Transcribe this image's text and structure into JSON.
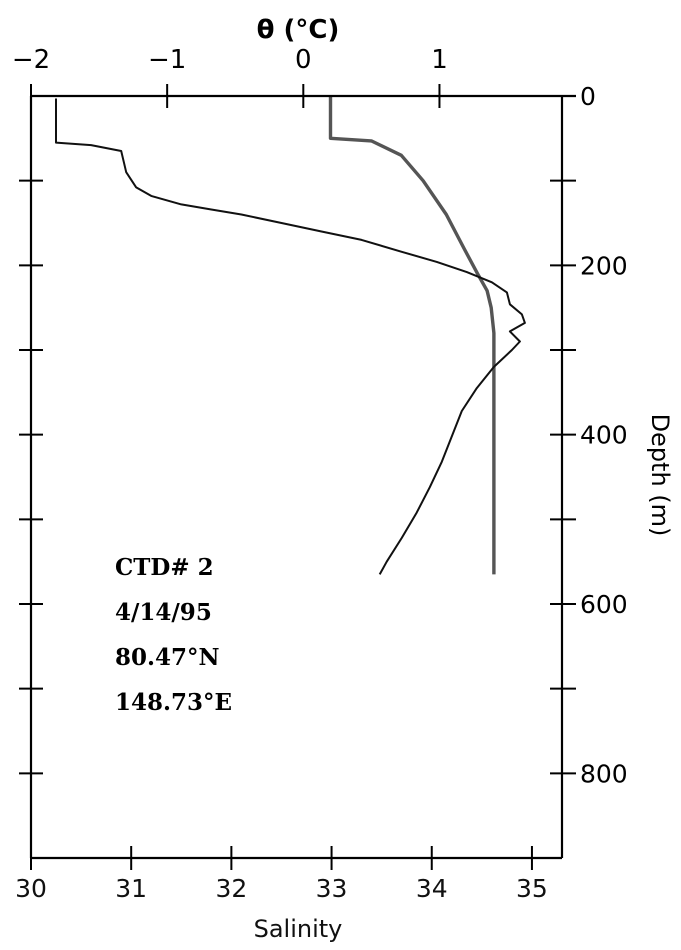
{
  "chart_data": {
    "type": "line",
    "orientation": "vertical-profile",
    "title": "",
    "top_axis": {
      "label": "θ (°C)",
      "range": [
        -2,
        1.9
      ],
      "ticks": [
        "−2",
        "−1",
        "0",
        "1"
      ],
      "tick_values": [
        -2,
        -1,
        0,
        1
      ]
    },
    "bottom_axis": {
      "label": "Salinity",
      "range": [
        30,
        35.3
      ],
      "ticks": [
        "30",
        "31",
        "32",
        "33",
        "34",
        "35"
      ],
      "tick_values": [
        30,
        31,
        32,
        33,
        34,
        35
      ]
    },
    "right_axis": {
      "label": "Depth (m)",
      "range": [
        0,
        900
      ],
      "inverted": true,
      "major_ticks": [
        "0",
        "200",
        "400",
        "600",
        "800"
      ],
      "major_tick_values": [
        0,
        200,
        400,
        600,
        800
      ],
      "minor_tick_values": [
        100,
        300,
        500,
        700
      ]
    },
    "annotations": [
      "CTD# 2",
      "4/14/95",
      "80.47°N",
      "148.73°E"
    ],
    "series": [
      {
        "variable": "theta",
        "color": "#555555",
        "points": [
          [
            0.2,
            0
          ],
          [
            0.2,
            50
          ],
          [
            0.5,
            53
          ],
          [
            0.72,
            70
          ],
          [
            0.88,
            100
          ],
          [
            1.05,
            140
          ],
          [
            1.18,
            180
          ],
          [
            1.28,
            210
          ],
          [
            1.35,
            230
          ],
          [
            1.38,
            250
          ],
          [
            1.4,
            280
          ],
          [
            1.4,
            300
          ],
          [
            1.4,
            400
          ],
          [
            1.4,
            500
          ],
          [
            1.4,
            565
          ]
        ]
      },
      {
        "variable": "salinity",
        "color": "#111111",
        "points": [
          [
            30.25,
            3
          ],
          [
            30.25,
            55
          ],
          [
            30.6,
            58
          ],
          [
            30.9,
            65
          ],
          [
            30.93,
            80
          ],
          [
            30.95,
            90
          ],
          [
            31.05,
            108
          ],
          [
            31.2,
            118
          ],
          [
            31.5,
            128
          ],
          [
            31.8,
            134
          ],
          [
            32.1,
            140
          ],
          [
            32.5,
            150
          ],
          [
            32.9,
            160
          ],
          [
            33.3,
            170
          ],
          [
            33.7,
            184
          ],
          [
            34.05,
            196
          ],
          [
            34.35,
            208
          ],
          [
            34.6,
            220
          ],
          [
            34.75,
            232
          ],
          [
            34.78,
            246
          ],
          [
            34.9,
            258
          ],
          [
            34.93,
            268
          ],
          [
            34.78,
            278
          ],
          [
            34.88,
            290
          ],
          [
            34.8,
            300
          ],
          [
            34.62,
            320
          ],
          [
            34.45,
            345
          ],
          [
            34.3,
            372
          ],
          [
            34.2,
            402
          ],
          [
            34.1,
            432
          ],
          [
            33.98,
            462
          ],
          [
            33.85,
            492
          ],
          [
            33.7,
            522
          ],
          [
            33.55,
            550
          ],
          [
            33.48,
            565
          ]
        ]
      }
    ]
  }
}
